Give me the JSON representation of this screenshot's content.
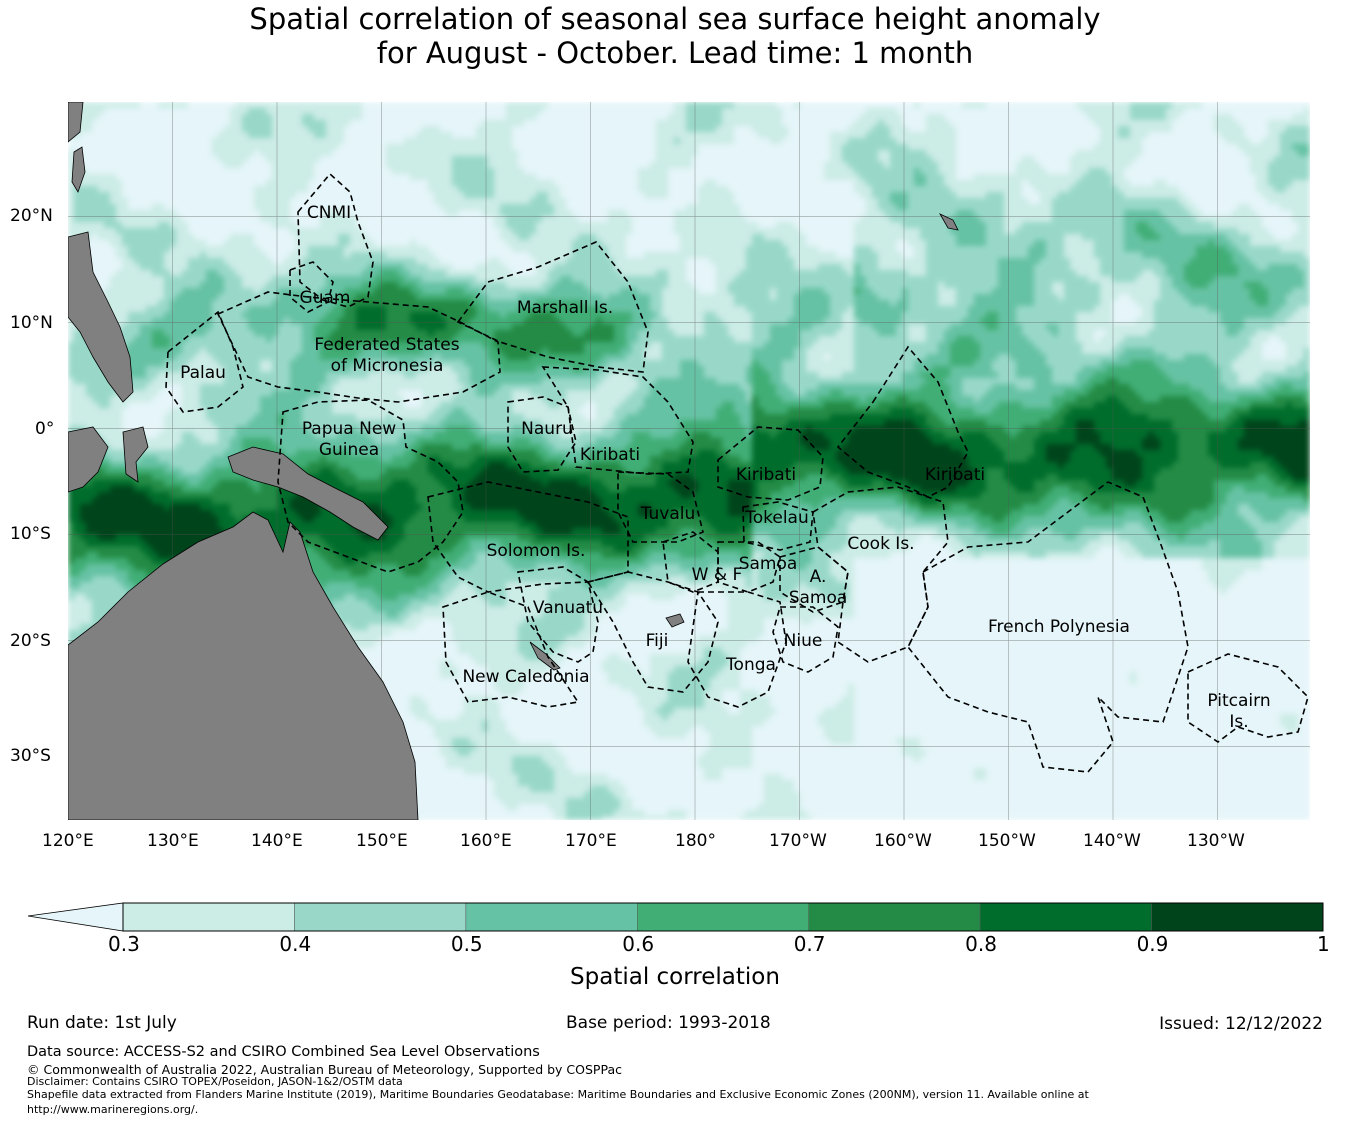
{
  "title": {
    "line1": "Spatial correlation of seasonal sea surface height anomaly",
    "line2": "for August - October. Lead time: 1 month"
  },
  "map": {
    "lon_ticks": [
      "120°E",
      "130°E",
      "140°E",
      "150°E",
      "160°E",
      "170°E",
      "180°",
      "170°W",
      "160°W",
      "150°W",
      "140°W",
      "130°W"
    ],
    "lat_ticks": [
      "20°N",
      "10°N",
      "0°",
      "10°S",
      "20°S",
      "30°S"
    ],
    "labels": {
      "cnmi": "CNMI",
      "guam": "Guam",
      "marshall": "Marshall Is.",
      "fsm1": "Federated States",
      "fsm2": "of Micronesia",
      "palau": "Palau",
      "png1": "Papua New",
      "png2": "Guinea",
      "nauru": "Nauru",
      "kiribati1": "Kiribati",
      "kiribati2": "Kiribati",
      "kiribati3": "Kiribati",
      "tuvalu": "Tuvalu",
      "tokelau": "Tokelau",
      "cook": "Cook Is.",
      "solomon": "Solomon Is.",
      "samoa": "Samoa",
      "wf": "W & F",
      "asamoa1": "A.",
      "asamoa2": "Samoa",
      "vanuatu": "Vanuatu",
      "frenchpoly": "French Polynesia",
      "fiji": "Fiji",
      "niue": "Niue",
      "tonga": "Tonga",
      "newcal": "New Caledonia",
      "pitcairn1": "Pitcairn",
      "pitcairn2": "Is."
    },
    "ocean_color": "#e5f5f9",
    "land_color": "#808080"
  },
  "colorbar": {
    "label": "Spatial correlation",
    "ticks": [
      "0.3",
      "0.4",
      "0.5",
      "0.6",
      "0.7",
      "0.8",
      "0.9",
      "1"
    ],
    "under_color": "#e5f5f9",
    "colors": [
      "#ccece6",
      "#99d8c9",
      "#66c2a4",
      "#41ae76",
      "#238b45",
      "#006d2c",
      "#00441b"
    ]
  },
  "footer": {
    "run_date": "Run date: 1st July",
    "base_period": "Base period: 1993-2018",
    "issued": "Issued: 12/12/2022",
    "data_source": "Data source: ACCESS-S2 and CSIRO Combined Sea Level Observations",
    "copyright": "© Commonwealth of Australia 2022, Australian Bureau of Meteorology, Supported by COSPPac",
    "disclaimer": "Disclaimer: Contains CSIRO TOPEX/Poseidon, JASON-1&2/OSTM data",
    "shapefile": "Shapefile data extracted from Flanders Marine Institute (2019), Maritime Boundaries Geodatabase: Maritime Boundaries and Exclusive Economic Zones (200NM), version 11. Available online at",
    "url": "http://www.marineregions.org/."
  }
}
